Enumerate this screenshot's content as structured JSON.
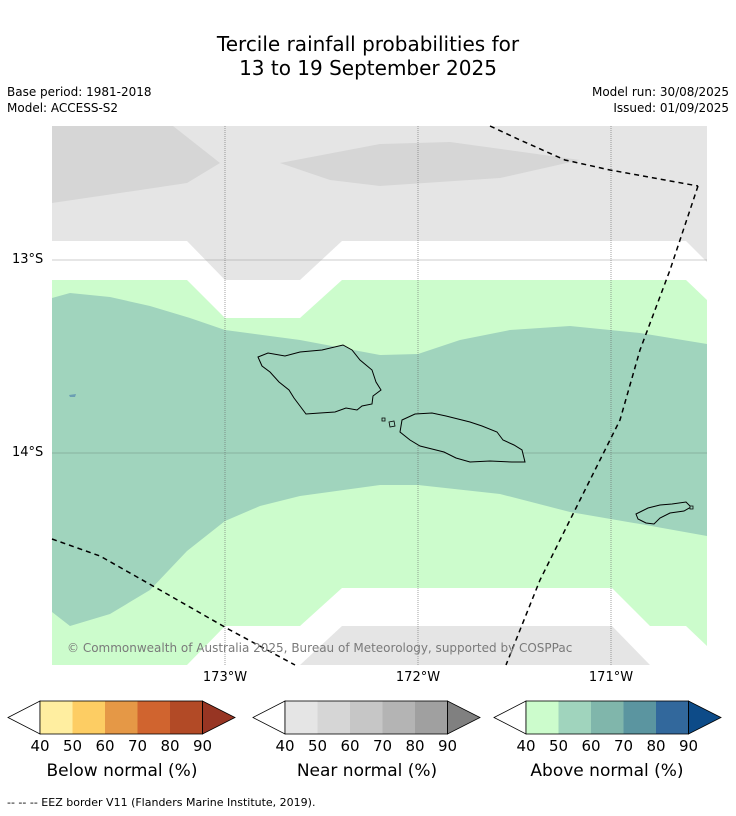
{
  "title": {
    "line1": "Tercile rainfall probabilities for",
    "line2": "13 to 19 September 2025"
  },
  "meta": {
    "base_period": "Base period: 1981-2018",
    "model": "Model: ACCESS-S2",
    "model_run": "Model run: 30/08/2025",
    "issued": "Issued: 01/09/2025"
  },
  "map": {
    "lat_labels": [
      "13°S",
      "14°S"
    ],
    "lon_labels": [
      "173°W",
      "172°W",
      "171°W"
    ],
    "copyright": "© Commonwealth of Australia 2025, Bureau of Meteorology, supported by COSPPac",
    "colors": {
      "near_40": "#e5e5e5",
      "near_50": "#d6d6d6",
      "above_40": "#ccfccc",
      "above_50": "#a0d4bd",
      "coast": "#000000"
    }
  },
  "colorbars": [
    {
      "title": "Below normal (%)",
      "ticks": [
        "40",
        "50",
        "60",
        "70",
        "80",
        "90"
      ],
      "colors": [
        "#ffeea0",
        "#fdcd63",
        "#e59846",
        "#d0642f",
        "#b24a26",
        "#973523"
      ]
    },
    {
      "title": "Near normal (%)",
      "ticks": [
        "40",
        "50",
        "60",
        "70",
        "80",
        "90"
      ],
      "colors": [
        "#e5e5e5",
        "#d6d6d6",
        "#c6c6c6",
        "#b4b4b4",
        "#a0a0a0",
        "#808080"
      ]
    },
    {
      "title": "Above normal (%)",
      "ticks": [
        "40",
        "50",
        "60",
        "70",
        "80",
        "90"
      ],
      "colors": [
        "#ccfccc",
        "#a0d4bd",
        "#80b6ab",
        "#5b95a0",
        "#32689c",
        "#0d4b88"
      ]
    }
  ],
  "footnote": "--  --  -- EEZ border V11 (Flanders Marine Institute, 2019)."
}
